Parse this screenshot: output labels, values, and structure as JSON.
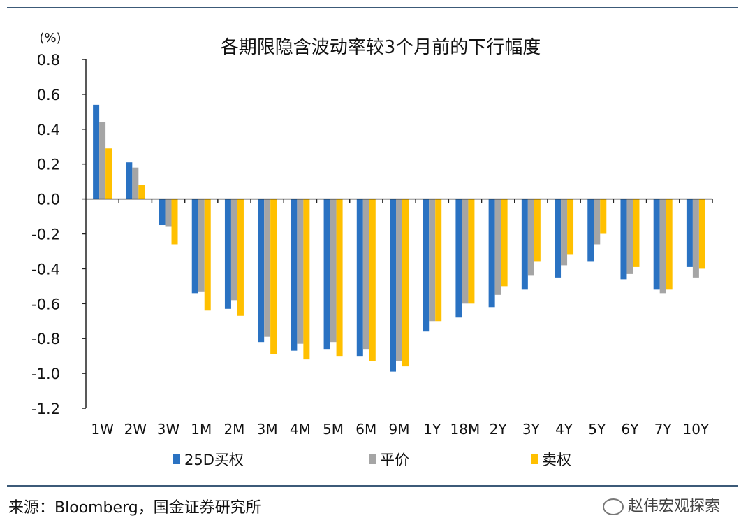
{
  "chart_data": {
    "type": "bar",
    "title": "各期限隐含波动率较3个月前的下行幅度",
    "unit_label": "(%)",
    "categories": [
      "1W",
      "2W",
      "3W",
      "1M",
      "2M",
      "3M",
      "4M",
      "5M",
      "6M",
      "9M",
      "1Y",
      "18M",
      "2Y",
      "3Y",
      "4Y",
      "5Y",
      "6Y",
      "7Y",
      "10Y"
    ],
    "series": [
      {
        "name": "25D买权",
        "color": "#2a72c2",
        "values": [
          0.54,
          0.21,
          -0.15,
          -0.54,
          -0.63,
          -0.82,
          -0.87,
          -0.86,
          -0.9,
          -0.99,
          -0.76,
          -0.68,
          -0.62,
          -0.52,
          -0.45,
          -0.36,
          -0.46,
          -0.52,
          -0.39
        ]
      },
      {
        "name": "平价",
        "color": "#a5a5a5",
        "values": [
          0.44,
          0.18,
          -0.16,
          -0.53,
          -0.58,
          -0.79,
          -0.83,
          -0.82,
          -0.86,
          -0.93,
          -0.7,
          -0.6,
          -0.55,
          -0.44,
          -0.38,
          -0.26,
          -0.43,
          -0.54,
          -0.45
        ]
      },
      {
        "name": "卖权",
        "color": "#ffc000",
        "values": [
          0.29,
          0.08,
          -0.26,
          -0.64,
          -0.67,
          -0.89,
          -0.92,
          -0.9,
          -0.93,
          -0.96,
          -0.7,
          -0.6,
          -0.5,
          -0.36,
          -0.32,
          -0.2,
          -0.39,
          -0.52,
          -0.4
        ]
      }
    ],
    "ylim": [
      -1.2,
      0.8
    ],
    "yticks": [
      "0.8",
      "0.6",
      "0.4",
      "0.2",
      "0.0",
      "-0.2",
      "-0.4",
      "-0.6",
      "-0.8",
      "-1.0",
      "-1.2"
    ],
    "grid": false,
    "legend_position": "bottom"
  },
  "source": "来源：Bloomberg，国金证券研究所",
  "watermark": "赵伟宏观探索"
}
